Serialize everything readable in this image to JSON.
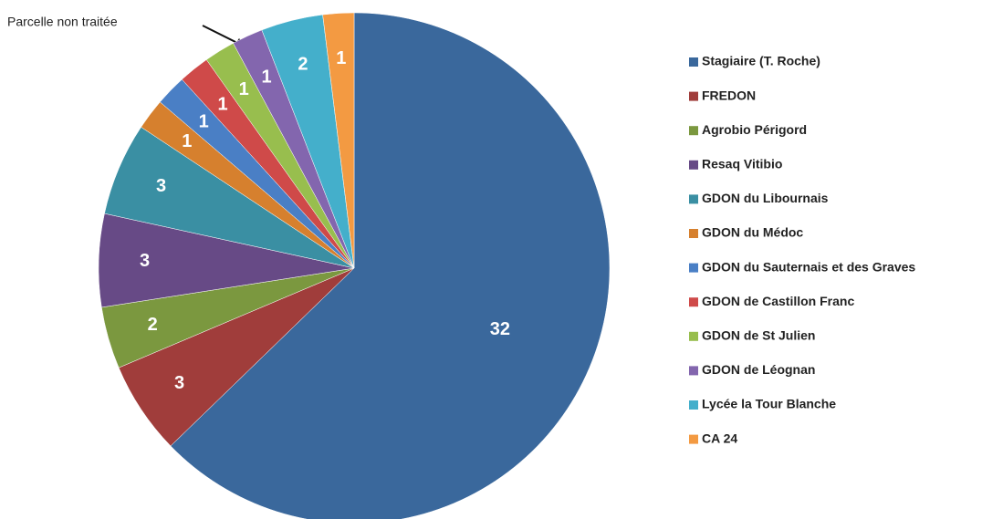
{
  "chart_data": {
    "type": "pie",
    "annotation": "Parcelle non traitée",
    "categories": [
      "Stagiaire (T. Roche)",
      "FREDON",
      "Agrobio Périgord",
      "Resaq Vitibio",
      "GDON du Libournais",
      "GDON du Médoc",
      "GDON du Sauternais et des Graves",
      "GDON de Castillon  Franc",
      "GDON de St Julien",
      "GDON de Léognan",
      "Lycée la Tour Blanche",
      "CA 24"
    ],
    "values": [
      32,
      3,
      2,
      3,
      3,
      1,
      1,
      1,
      1,
      1,
      2,
      1
    ],
    "colors": [
      "#3a689c",
      "#a03d3b",
      "#7b983f",
      "#674a86",
      "#3a8fa3",
      "#d6802e",
      "#4a7fc5",
      "#cf4a49",
      "#98be4e",
      "#8366ae",
      "#44afcb",
      "#f39a42"
    ],
    "legend": "right"
  }
}
